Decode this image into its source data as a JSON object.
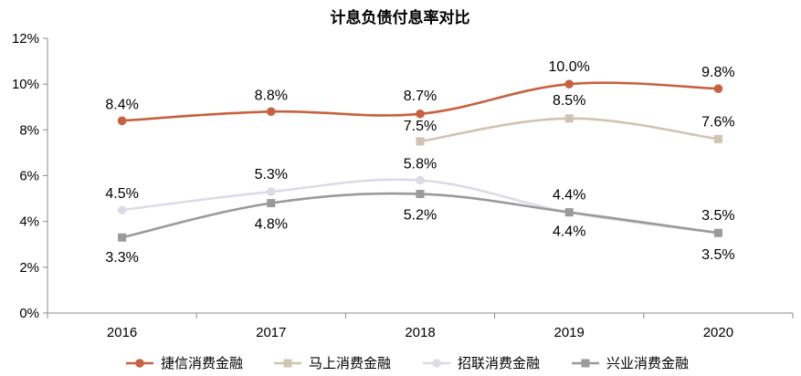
{
  "chart_data": {
    "type": "line",
    "title": "计息负债付息率对比",
    "categories": [
      "2016",
      "2017",
      "2018",
      "2019",
      "2020"
    ],
    "ylim": [
      0,
      12
    ],
    "yticks": [
      0,
      2,
      4,
      6,
      8,
      10,
      12
    ],
    "ytick_labels": [
      "0%",
      "2%",
      "4%",
      "6%",
      "8%",
      "10%",
      "12%"
    ],
    "legend_position": "bottom",
    "series": [
      {
        "name": "捷信消费金融",
        "color": "#C8613F",
        "marker": "circle",
        "values": [
          8.4,
          8.8,
          8.7,
          10.0,
          9.8
        ],
        "labels": [
          "8.4%",
          "8.8%",
          "8.7%",
          "10.0%",
          "9.8%"
        ]
      },
      {
        "name": "马上消费金融",
        "color": "#D2C3B1",
        "marker": "square",
        "values": [
          null,
          null,
          7.5,
          8.5,
          7.6
        ],
        "labels": [
          null,
          null,
          "7.5%",
          "8.5%",
          "7.6%"
        ]
      },
      {
        "name": "招联消费金融",
        "color": "#DCDCE6",
        "marker": "circle",
        "values": [
          4.5,
          5.3,
          5.8,
          4.4,
          3.5
        ],
        "labels": [
          "4.5%",
          "5.3%",
          "5.8%",
          "4.4%",
          "3.5%"
        ]
      },
      {
        "name": "兴业消费金融",
        "color": "#9A9A9A",
        "marker": "square",
        "values": [
          3.3,
          4.8,
          5.2,
          4.4,
          3.5
        ],
        "labels": [
          "3.3%",
          "4.8%",
          "5.2%",
          "4.4%",
          "3.5%"
        ]
      }
    ]
  }
}
